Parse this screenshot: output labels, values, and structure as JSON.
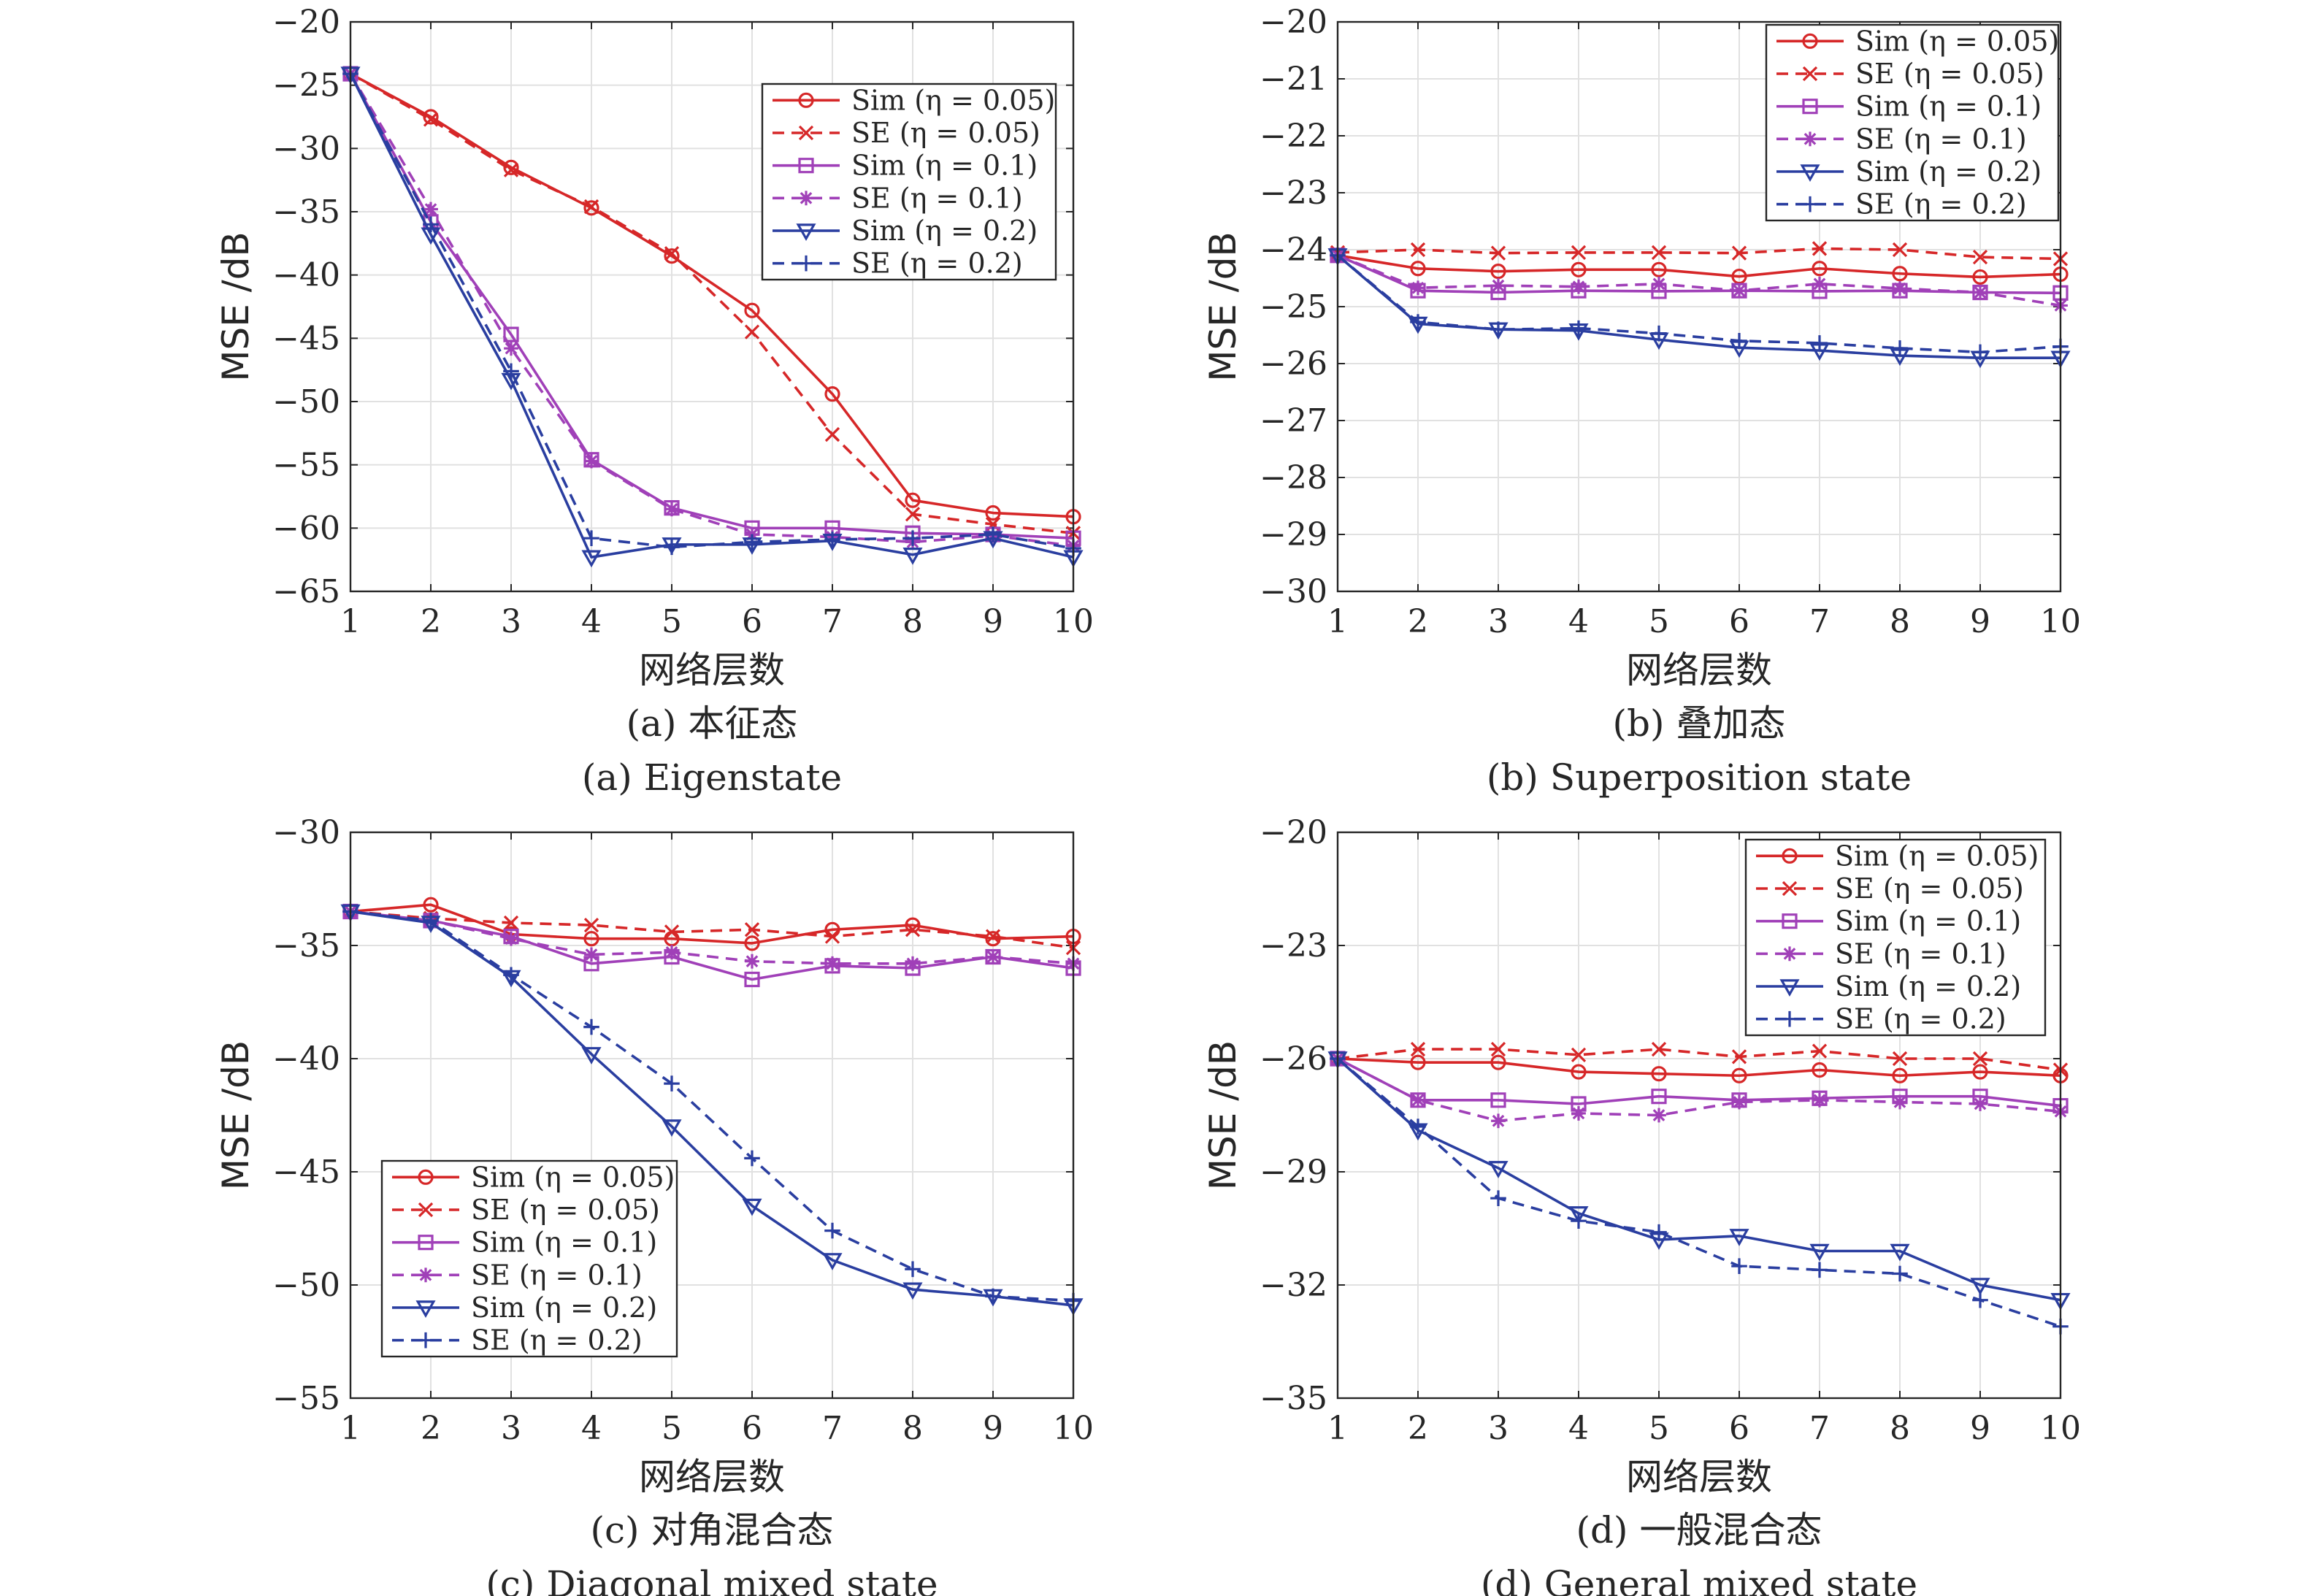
{
  "chart_data": [
    {
      "type": "line",
      "caption_cn": "(a) 本征态",
      "caption_en": "(a) Eigenstate",
      "xlabel": "网络层数",
      "ylabel": "MSE /dB",
      "xlim": [
        1,
        10
      ],
      "ylim": [
        -65,
        -20
      ],
      "xticks": [
        1,
        2,
        3,
        4,
        5,
        6,
        7,
        8,
        9,
        10
      ],
      "yticks": [
        -65,
        -60,
        -55,
        -50,
        -45,
        -40,
        -35,
        -30,
        -25,
        -20
      ],
      "grid": true,
      "legend_position": "top-right",
      "x": [
        1,
        2,
        3,
        4,
        5,
        6,
        7,
        8,
        9,
        10
      ],
      "series": [
        {
          "name": "Sim (η = 0.05)",
          "color": "#d62728",
          "dash": false,
          "marker": "circle",
          "values": [
            -24.1,
            -27.5,
            -31.5,
            -34.7,
            -38.5,
            -42.8,
            -49.4,
            -57.8,
            -58.8,
            -59.1
          ]
        },
        {
          "name": "SE (η = 0.05)",
          "color": "#d62728",
          "dash": true,
          "marker": "x",
          "values": [
            -24.1,
            -27.7,
            -31.7,
            -34.6,
            -38.3,
            -44.5,
            -52.6,
            -58.9,
            -59.7,
            -60.4
          ]
        },
        {
          "name": "Sim (η = 0.1)",
          "color": "#a040b8",
          "dash": false,
          "marker": "square",
          "values": [
            -24.1,
            -35.8,
            -44.7,
            -54.6,
            -58.4,
            -60.0,
            -60.0,
            -60.4,
            -60.5,
            -60.8
          ]
        },
        {
          "name": "SE (η = 0.1)",
          "color": "#a040b8",
          "dash": true,
          "marker": "star",
          "values": [
            -24.1,
            -34.8,
            -45.8,
            -54.7,
            -58.5,
            -60.5,
            -60.7,
            -61.1,
            -60.6,
            -61.4
          ]
        },
        {
          "name": "Sim (η = 0.2)",
          "color": "#2a3ea0",
          "dash": false,
          "marker": "tri-down",
          "values": [
            -24.1,
            -36.8,
            -48.3,
            -62.3,
            -61.3,
            -61.3,
            -61.0,
            -62.1,
            -60.8,
            -62.3
          ]
        },
        {
          "name": "SE (η = 0.2)",
          "color": "#2a3ea0",
          "dash": true,
          "marker": "plus",
          "values": [
            -24.1,
            -36.0,
            -47.6,
            -60.8,
            -61.5,
            -61.1,
            -60.9,
            -60.8,
            -60.5,
            -61.6
          ]
        }
      ]
    },
    {
      "type": "line",
      "caption_cn": "(b) 叠加态",
      "caption_en": "(b) Superposition state",
      "xlabel": "网络层数",
      "ylabel": "MSE /dB",
      "xlim": [
        1,
        10
      ],
      "ylim": [
        -30,
        -20
      ],
      "xticks": [
        1,
        2,
        3,
        4,
        5,
        6,
        7,
        8,
        9,
        10
      ],
      "yticks": [
        -30,
        -29,
        -28,
        -27,
        -26,
        -25,
        -24,
        -23,
        -22,
        -21,
        -20
      ],
      "grid": true,
      "legend_position": "top-right",
      "x": [
        1,
        2,
        3,
        4,
        5,
        6,
        7,
        8,
        9,
        10
      ],
      "series": [
        {
          "name": "Sim (η = 0.05)",
          "color": "#d62728",
          "dash": false,
          "marker": "circle",
          "values": [
            -24.1,
            -24.33,
            -24.38,
            -24.35,
            -24.35,
            -24.47,
            -24.33,
            -24.42,
            -24.48,
            -24.43
          ]
        },
        {
          "name": "SE (η = 0.05)",
          "color": "#d62728",
          "dash": true,
          "marker": "x",
          "values": [
            -24.05,
            -24.0,
            -24.06,
            -24.05,
            -24.05,
            -24.06,
            -23.98,
            -24.0,
            -24.13,
            -24.16
          ]
        },
        {
          "name": "Sim (η = 0.1)",
          "color": "#a040b8",
          "dash": false,
          "marker": "square",
          "values": [
            -24.1,
            -24.72,
            -24.75,
            -24.72,
            -24.73,
            -24.72,
            -24.73,
            -24.72,
            -24.75,
            -24.76
          ]
        },
        {
          "name": "SE (η = 0.1)",
          "color": "#a040b8",
          "dash": true,
          "marker": "star",
          "values": [
            -24.1,
            -24.67,
            -24.63,
            -24.65,
            -24.6,
            -24.72,
            -24.6,
            -24.68,
            -24.75,
            -24.98
          ]
        },
        {
          "name": "Sim (η = 0.2)",
          "color": "#2a3ea0",
          "dash": false,
          "marker": "tri-down",
          "values": [
            -24.1,
            -25.3,
            -25.4,
            -25.42,
            -25.58,
            -25.72,
            -25.77,
            -25.86,
            -25.9,
            -25.9
          ]
        },
        {
          "name": "SE (η = 0.2)",
          "color": "#2a3ea0",
          "dash": true,
          "marker": "plus",
          "values": [
            -24.1,
            -25.27,
            -25.4,
            -25.38,
            -25.47,
            -25.6,
            -25.64,
            -25.73,
            -25.8,
            -25.7
          ]
        }
      ]
    },
    {
      "type": "line",
      "caption_cn": "(c) 对角混合态",
      "caption_en": "(c) Diagonal mixed state",
      "xlabel": "网络层数",
      "ylabel": "MSE /dB",
      "xlim": [
        1,
        10
      ],
      "ylim": [
        -55,
        -30
      ],
      "xticks": [
        1,
        2,
        3,
        4,
        5,
        6,
        7,
        8,
        9,
        10
      ],
      "yticks": [
        -55,
        -50,
        -45,
        -40,
        -35,
        -30
      ],
      "grid": true,
      "legend_position": "bottom-left",
      "x": [
        1,
        2,
        3,
        4,
        5,
        6,
        7,
        8,
        9,
        10
      ],
      "series": [
        {
          "name": "Sim (η = 0.05)",
          "color": "#d62728",
          "dash": false,
          "marker": "circle",
          "values": [
            -33.5,
            -33.2,
            -34.5,
            -34.7,
            -34.7,
            -34.9,
            -34.3,
            -34.1,
            -34.7,
            -34.6
          ]
        },
        {
          "name": "SE (η = 0.05)",
          "color": "#d62728",
          "dash": true,
          "marker": "x",
          "values": [
            -33.5,
            -33.8,
            -34.0,
            -34.1,
            -34.4,
            -34.3,
            -34.6,
            -34.3,
            -34.6,
            -35.1
          ]
        },
        {
          "name": "Sim (η = 0.1)",
          "color": "#a040b8",
          "dash": false,
          "marker": "square",
          "values": [
            -33.5,
            -33.9,
            -34.6,
            -35.8,
            -35.5,
            -36.5,
            -35.9,
            -36.0,
            -35.5,
            -36.0
          ]
        },
        {
          "name": "SE (η = 0.1)",
          "color": "#a040b8",
          "dash": true,
          "marker": "star",
          "values": [
            -33.5,
            -33.9,
            -34.7,
            -35.4,
            -35.3,
            -35.7,
            -35.8,
            -35.8,
            -35.5,
            -35.8
          ]
        },
        {
          "name": "Sim (η = 0.2)",
          "color": "#2a3ea0",
          "dash": false,
          "marker": "tri-down",
          "values": [
            -33.5,
            -34.0,
            -36.4,
            -39.8,
            -43.0,
            -46.5,
            -48.9,
            -50.2,
            -50.5,
            -50.9
          ]
        },
        {
          "name": "SE (η = 0.2)",
          "color": "#2a3ea0",
          "dash": true,
          "marker": "plus",
          "values": [
            -33.5,
            -33.9,
            -36.3,
            -38.6,
            -41.1,
            -44.4,
            -47.6,
            -49.3,
            -50.5,
            -50.7
          ]
        }
      ]
    },
    {
      "type": "line",
      "caption_cn": "(d) 一般混合态",
      "caption_en": "(d) General mixed state",
      "xlabel": "网络层数",
      "ylabel": "MSE /dB",
      "xlim": [
        1,
        10
      ],
      "ylim": [
        -35,
        -20
      ],
      "xticks": [
        1,
        2,
        3,
        4,
        5,
        6,
        7,
        8,
        9,
        10
      ],
      "yticks": [
        -35,
        -32,
        -29,
        -26,
        -23,
        -20
      ],
      "grid": true,
      "legend_position": "top-right",
      "x": [
        1,
        2,
        3,
        4,
        5,
        6,
        7,
        8,
        9,
        10
      ],
      "series": [
        {
          "name": "Sim (η = 0.05)",
          "color": "#d62728",
          "dash": false,
          "marker": "circle",
          "values": [
            -26.0,
            -26.1,
            -26.1,
            -26.35,
            -26.4,
            -26.45,
            -26.3,
            -26.45,
            -26.35,
            -26.45
          ]
        },
        {
          "name": "SE (η = 0.05)",
          "color": "#d62728",
          "dash": true,
          "marker": "x",
          "values": [
            -26.0,
            -25.75,
            -25.75,
            -25.9,
            -25.75,
            -25.95,
            -25.8,
            -26.0,
            -26.0,
            -26.3
          ]
        },
        {
          "name": "Sim (η = 0.1)",
          "color": "#a040b8",
          "dash": false,
          "marker": "square",
          "values": [
            -26.0,
            -27.1,
            -27.1,
            -27.2,
            -27.0,
            -27.1,
            -27.05,
            -27.0,
            -27.0,
            -27.25
          ]
        },
        {
          "name": "SE (η = 0.1)",
          "color": "#a040b8",
          "dash": true,
          "marker": "star",
          "values": [
            -26.0,
            -27.1,
            -27.65,
            -27.45,
            -27.5,
            -27.15,
            -27.1,
            -27.15,
            -27.2,
            -27.4
          ]
        },
        {
          "name": "Sim (η = 0.2)",
          "color": "#2a3ea0",
          "dash": false,
          "marker": "tri-down",
          "values": [
            -26.0,
            -27.9,
            -28.9,
            -30.1,
            -30.8,
            -30.7,
            -31.1,
            -31.1,
            -32.0,
            -32.4
          ]
        },
        {
          "name": "SE (η = 0.2)",
          "color": "#2a3ea0",
          "dash": true,
          "marker": "plus",
          "values": [
            -26.0,
            -27.8,
            -29.7,
            -30.3,
            -30.6,
            -31.5,
            -31.6,
            -31.7,
            -32.4,
            -33.1
          ]
        }
      ]
    }
  ]
}
